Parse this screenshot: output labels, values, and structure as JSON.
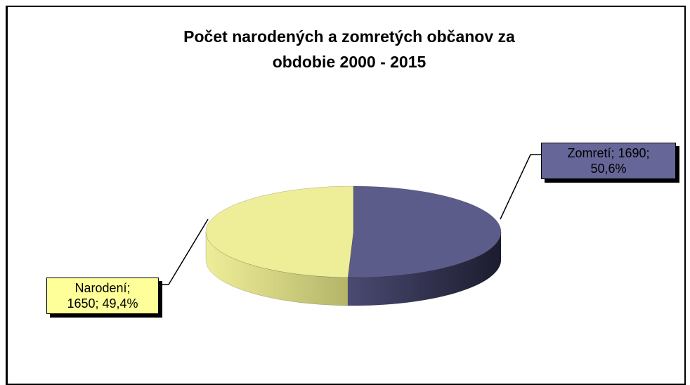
{
  "chart_data": {
    "type": "pie3d",
    "title": "Počet narodených a zomretých občanov za obdobie 2000 - 2015",
    "categories": [
      "Zomretí",
      "Narodení"
    ],
    "values": [
      1690,
      1650
    ],
    "percent_labels": [
      "50,6%",
      "49,4%"
    ],
    "label_separator": "; ",
    "colors": [
      "#5c5c8a",
      "#eeee99"
    ],
    "side_colors": [
      "#24243a",
      "#b9b96c"
    ]
  }
}
